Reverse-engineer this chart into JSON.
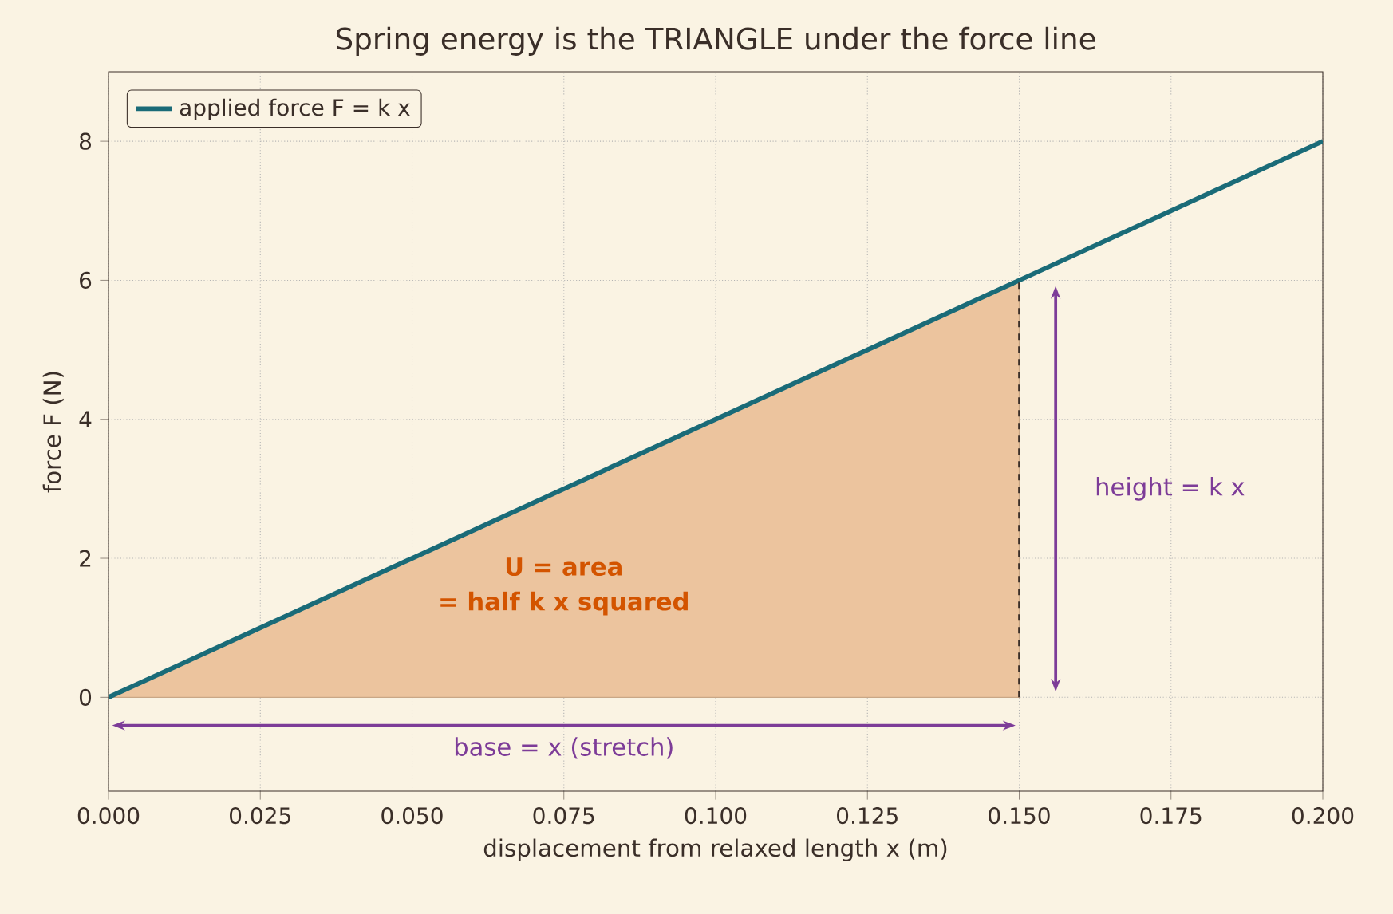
{
  "chart_data": {
    "type": "line",
    "title": "Spring energy is the TRIANGLE under the force line",
    "xlabel": "displacement from relaxed length  x  (m)",
    "ylabel": "force  F  (N)",
    "series": [
      {
        "name": "applied force  F = k x",
        "color": "#1a6b78",
        "x": [
          0,
          0.2
        ],
        "values": [
          0,
          8
        ]
      },
      {
        "type": "area",
        "color": "#ecc49e",
        "x": [
          0,
          0.15
        ],
        "values": [
          0,
          6
        ]
      },
      {
        "color": "#3a2e28",
        "x": [
          0.15,
          0.15
        ],
        "values": [
          0,
          6
        ],
        "line_style": "dashed"
      }
    ],
    "xlim": [
      0,
      0.2
    ],
    "ylim": [
      -1.35,
      9
    ],
    "xticks": [
      {
        "value": 0,
        "label": "0.000"
      },
      0.025,
      {
        "value": 0.05,
        "label": "0.050"
      },
      0.075,
      {
        "value": 0.1,
        "label": "0.100"
      },
      0.125,
      {
        "value": 0.15,
        "label": "0.150"
      },
      0.175,
      {
        "value": 0.2,
        "label": "0.200"
      }
    ],
    "yticks": [
      0,
      2,
      4,
      6,
      8
    ],
    "annotations": [
      "U = area",
      "= half k x squared",
      "base = x (stretch)",
      "height = k x"
    ],
    "grid": true,
    "legend": "top left"
  }
}
